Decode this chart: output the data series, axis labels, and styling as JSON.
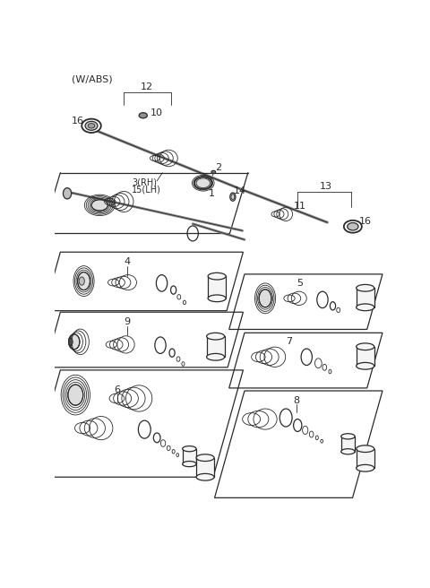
{
  "bg_color": "#ffffff",
  "line_color": "#2a2a2a",
  "header_text": "(W/ABS)",
  "shaft_color": "#1a1a1a",
  "gray_fill": "#d0d0d0",
  "light_gray": "#e8e8e8"
}
